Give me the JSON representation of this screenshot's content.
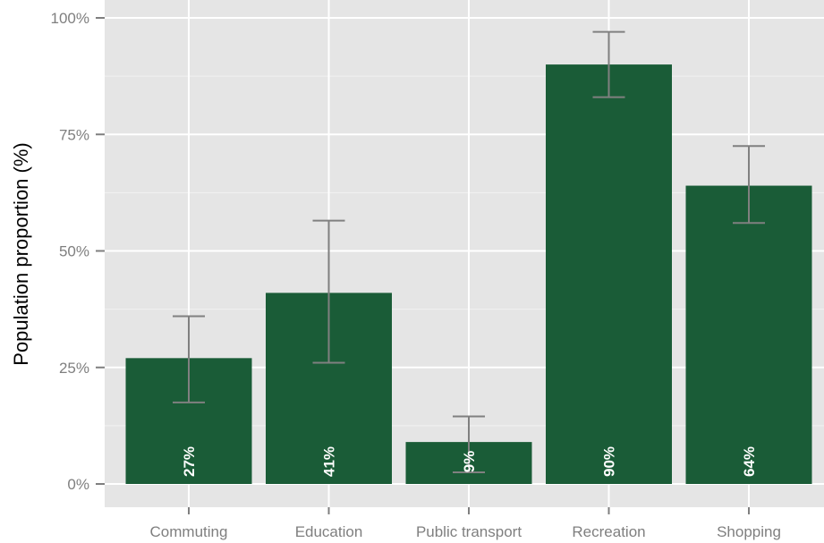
{
  "chart_data": {
    "type": "bar",
    "title": "",
    "xlabel": "",
    "ylabel": "Population proportion (%)",
    "ylim": [
      0,
      100
    ],
    "yticks": [
      0,
      25,
      50,
      75,
      100
    ],
    "ytick_labels": [
      "0%",
      "25%",
      "50%",
      "75%",
      "100%"
    ],
    "categories": [
      "Commuting",
      "Education",
      "Public transport",
      "Recreation",
      "Shopping"
    ],
    "values": [
      27,
      41,
      9,
      90,
      64
    ],
    "value_labels": [
      "27%",
      "41%",
      "9%",
      "90%",
      "64%"
    ],
    "error_low": [
      17.5,
      26,
      2.5,
      83,
      56
    ],
    "error_high": [
      36,
      56.5,
      14.5,
      97,
      72.5
    ],
    "grid": true,
    "legend": "none",
    "colors": {
      "bar": "#1a5c37",
      "panel": "#e5e5e5",
      "grid": "#ffffff",
      "errorbar": "#808080",
      "bar_label": "#ffffff"
    }
  }
}
